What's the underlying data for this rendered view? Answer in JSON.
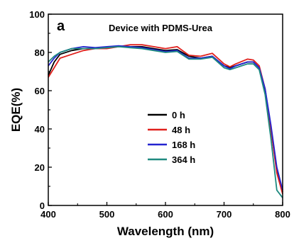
{
  "chart_data": {
    "type": "line",
    "panel_label": "a",
    "title": "Device with PDMS-Urea",
    "xlabel": "Wavelength (nm)",
    "ylabel": "EQE(%)",
    "xlim": [
      400,
      800
    ],
    "ylim": [
      0,
      100
    ],
    "xticks": [
      400,
      500,
      600,
      700,
      800
    ],
    "yticks": [
      0,
      20,
      40,
      60,
      80,
      100
    ],
    "grid": false,
    "legend_position": "center-right",
    "series": [
      {
        "name": "0 h",
        "color": "#000000",
        "points": [
          [
            400,
            68
          ],
          [
            410,
            75
          ],
          [
            420,
            79
          ],
          [
            440,
            81
          ],
          [
            460,
            82
          ],
          [
            480,
            82
          ],
          [
            500,
            82.5
          ],
          [
            520,
            83
          ],
          [
            540,
            83
          ],
          [
            560,
            83
          ],
          [
            580,
            82
          ],
          [
            600,
            81
          ],
          [
            620,
            81.5
          ],
          [
            640,
            78
          ],
          [
            660,
            77
          ],
          [
            680,
            78
          ],
          [
            700,
            73
          ],
          [
            710,
            72
          ],
          [
            720,
            73
          ],
          [
            740,
            75
          ],
          [
            750,
            75
          ],
          [
            760,
            72
          ],
          [
            770,
            60
          ],
          [
            780,
            40
          ],
          [
            790,
            18
          ],
          [
            800,
            7
          ]
        ]
      },
      {
        "name": "48 h",
        "color": "#e0201c",
        "points": [
          [
            400,
            67
          ],
          [
            410,
            72
          ],
          [
            420,
            77
          ],
          [
            440,
            79
          ],
          [
            460,
            81
          ],
          [
            480,
            82
          ],
          [
            500,
            82
          ],
          [
            520,
            83
          ],
          [
            540,
            84
          ],
          [
            560,
            84
          ],
          [
            580,
            83
          ],
          [
            600,
            82
          ],
          [
            620,
            83
          ],
          [
            640,
            78.5
          ],
          [
            660,
            78
          ],
          [
            680,
            79.5
          ],
          [
            700,
            74
          ],
          [
            710,
            72.5
          ],
          [
            720,
            74
          ],
          [
            740,
            76.5
          ],
          [
            750,
            76
          ],
          [
            760,
            73
          ],
          [
            770,
            61
          ],
          [
            780,
            40
          ],
          [
            790,
            17
          ],
          [
            800,
            6
          ]
        ]
      },
      {
        "name": "168 h",
        "color": "#2424d0",
        "points": [
          [
            400,
            73
          ],
          [
            410,
            77
          ],
          [
            420,
            80
          ],
          [
            440,
            82
          ],
          [
            460,
            83
          ],
          [
            480,
            82.5
          ],
          [
            500,
            83
          ],
          [
            520,
            83.5
          ],
          [
            540,
            83
          ],
          [
            560,
            82.5
          ],
          [
            580,
            81.5
          ],
          [
            600,
            80.5
          ],
          [
            620,
            81
          ],
          [
            640,
            77
          ],
          [
            660,
            77
          ],
          [
            680,
            78
          ],
          [
            700,
            73
          ],
          [
            710,
            71.5
          ],
          [
            720,
            73
          ],
          [
            740,
            75
          ],
          [
            750,
            75
          ],
          [
            760,
            72
          ],
          [
            770,
            61
          ],
          [
            780,
            42
          ],
          [
            790,
            20
          ],
          [
            800,
            8
          ]
        ]
      },
      {
        "name": "364 h",
        "color": "#1f8a80",
        "points": [
          [
            400,
            75
          ],
          [
            410,
            78
          ],
          [
            420,
            80
          ],
          [
            440,
            82
          ],
          [
            460,
            82
          ],
          [
            480,
            82
          ],
          [
            500,
            82.5
          ],
          [
            520,
            83
          ],
          [
            540,
            82.5
          ],
          [
            560,
            82
          ],
          [
            580,
            81
          ],
          [
            600,
            80
          ],
          [
            620,
            80.5
          ],
          [
            640,
            76.5
          ],
          [
            660,
            76.5
          ],
          [
            680,
            77.5
          ],
          [
            700,
            72
          ],
          [
            710,
            71
          ],
          [
            720,
            72
          ],
          [
            740,
            74
          ],
          [
            750,
            74
          ],
          [
            760,
            71
          ],
          [
            770,
            58
          ],
          [
            780,
            35
          ],
          [
            790,
            8
          ],
          [
            800,
            4
          ]
        ]
      }
    ]
  }
}
